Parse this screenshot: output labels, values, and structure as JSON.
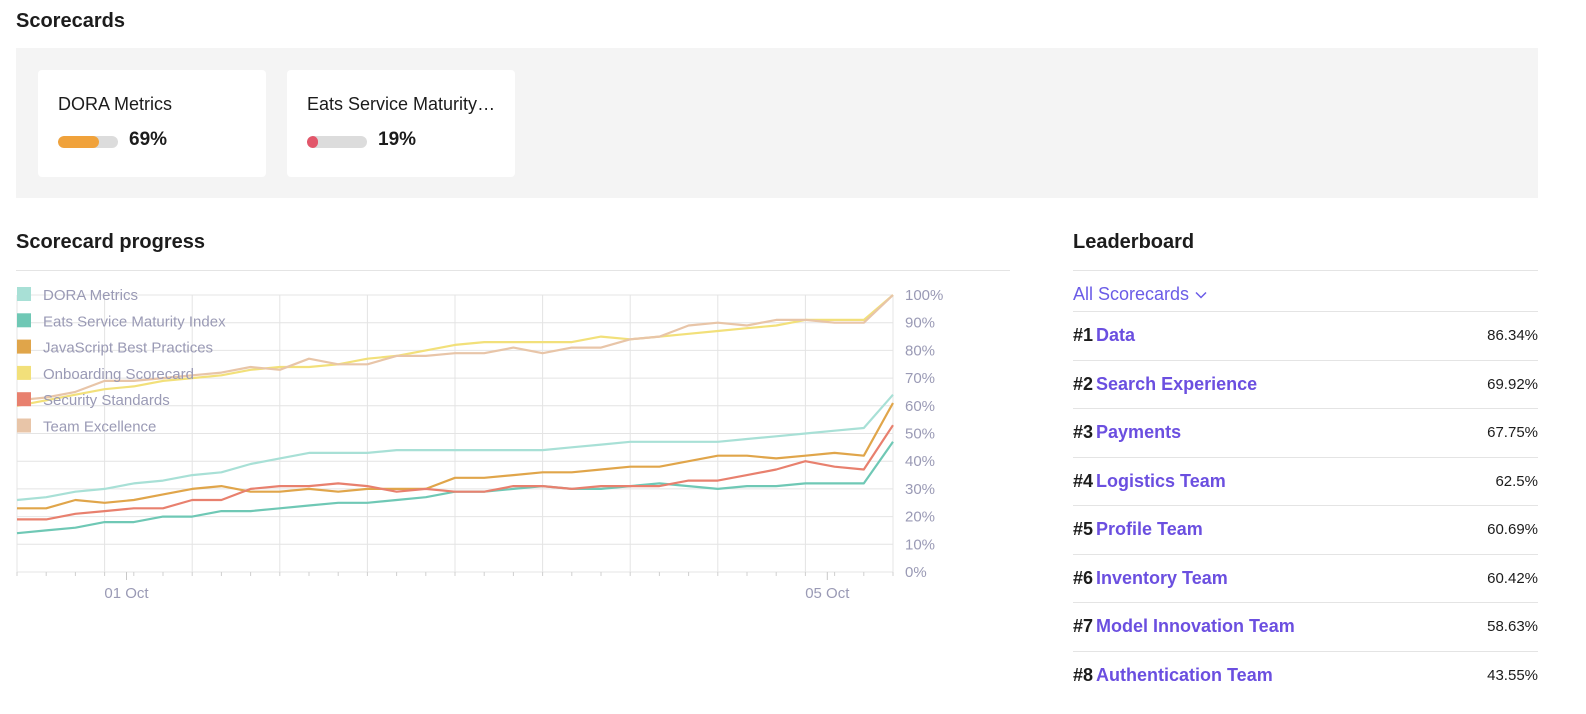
{
  "scorecards": {
    "title": "Scorecards",
    "cards": [
      {
        "title": "DORA Metrics",
        "pct_label": "69%",
        "pct": 69,
        "color": "#f0a23b"
      },
      {
        "title": "Eats Service Maturity Index",
        "pct_label": "19%",
        "pct": 19,
        "color": "#e2566a"
      }
    ]
  },
  "progress": {
    "title": "Scorecard progress"
  },
  "leaderboard": {
    "title": "Leaderboard",
    "filter_label": "All Scorecards",
    "rows": [
      {
        "rank": "#1",
        "team": "Data",
        "score": "86.34%"
      },
      {
        "rank": "#2",
        "team": "Search Experience",
        "score": "69.92%"
      },
      {
        "rank": "#3",
        "team": "Payments",
        "score": "67.75%"
      },
      {
        "rank": "#4",
        "team": "Logistics Team",
        "score": "62.5%"
      },
      {
        "rank": "#5",
        "team": "Profile Team",
        "score": "60.69%"
      },
      {
        "rank": "#6",
        "team": "Inventory Team",
        "score": "60.42%"
      },
      {
        "rank": "#7",
        "team": "Model Innovation Team",
        "score": "58.63%"
      },
      {
        "rank": "#8",
        "team": "Authentication Team",
        "score": "43.55%"
      }
    ]
  },
  "chart_data": {
    "type": "line",
    "title": "Scorecard progress",
    "xlabel": "",
    "ylabel": "",
    "ylim": [
      0,
      100
    ],
    "yticks": [
      "0%",
      "10%",
      "20%",
      "30%",
      "40%",
      "50%",
      "60%",
      "70%",
      "80%",
      "90%",
      "100%"
    ],
    "xtick_labels": [
      {
        "index": 5,
        "label": "01 Oct"
      },
      {
        "index": 37,
        "label": "05 Oct"
      }
    ],
    "legend_position": "top-left",
    "series": [
      {
        "name": "DORA Metrics",
        "color": "#a8e0d6",
        "values": [
          26,
          27,
          29,
          30,
          32,
          33,
          35,
          36,
          39,
          41,
          43,
          43,
          43,
          44,
          44,
          44,
          44,
          44,
          44,
          45,
          46,
          47,
          47,
          47,
          47,
          48,
          49,
          50,
          51,
          52,
          64
        ]
      },
      {
        "name": "Eats Service Maturity Index",
        "color": "#6fc8b5",
        "values": [
          14,
          15,
          16,
          18,
          18,
          20,
          20,
          22,
          22,
          23,
          24,
          25,
          25,
          26,
          27,
          29,
          29,
          30,
          31,
          30,
          30,
          31,
          32,
          31,
          30,
          31,
          31,
          32,
          32,
          32,
          47
        ]
      },
      {
        "name": "JavaScript Best Practices",
        "color": "#e0a54a",
        "values": [
          23,
          23,
          26,
          25,
          26,
          28,
          30,
          31,
          29,
          29,
          30,
          29,
          30,
          30,
          30,
          34,
          34,
          35,
          36,
          36,
          37,
          38,
          38,
          40,
          42,
          42,
          41,
          42,
          43,
          42,
          61
        ]
      },
      {
        "name": "Onboarding Scorecard",
        "color": "#f2e07a",
        "values": [
          60,
          62,
          64,
          66,
          67,
          69,
          70,
          71,
          73,
          74,
          74,
          75,
          77,
          78,
          80,
          82,
          83,
          83,
          83,
          83,
          85,
          84,
          85,
          86,
          87,
          88,
          89,
          91,
          91,
          91,
          100
        ]
      },
      {
        "name": "Security Standards",
        "color": "#e8806e",
        "values": [
          19,
          19,
          21,
          22,
          23,
          23,
          26,
          26,
          30,
          31,
          31,
          32,
          31,
          29,
          30,
          29,
          29,
          31,
          31,
          30,
          31,
          31,
          31,
          33,
          33,
          35,
          37,
          40,
          38,
          37,
          53
        ]
      },
      {
        "name": "Team Excellence",
        "color": "#e8c5a8",
        "values": [
          62,
          63,
          65,
          69,
          69,
          70,
          71,
          72,
          74,
          73,
          77,
          75,
          75,
          78,
          78,
          79,
          79,
          81,
          79,
          81,
          81,
          84,
          85,
          89,
          90,
          89,
          91,
          91,
          90,
          90,
          100
        ]
      }
    ]
  }
}
